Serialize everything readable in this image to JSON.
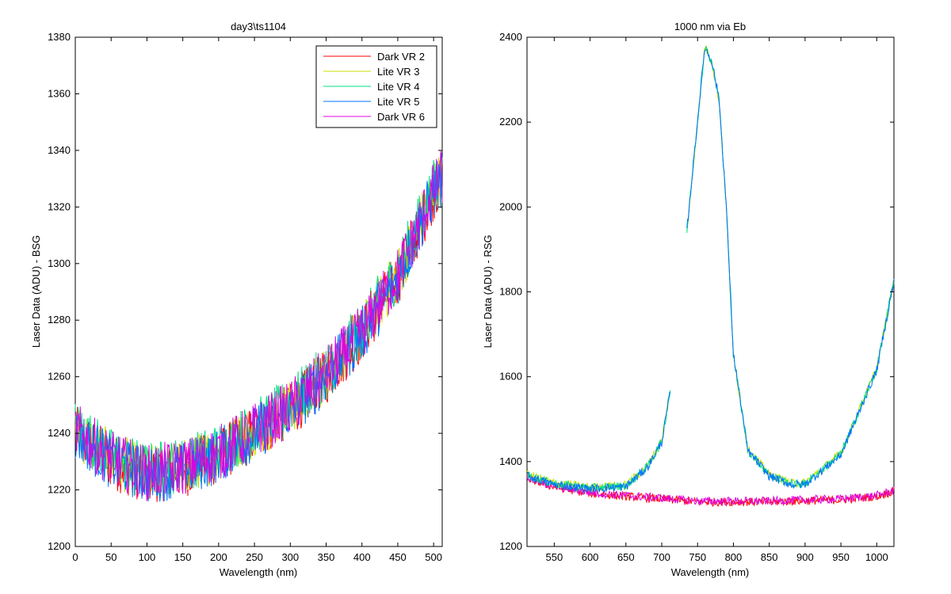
{
  "chart_data": [
    {
      "type": "line",
      "title": "day3\\ts1104",
      "xlabel": "Wavelength (nm)",
      "ylabel": "Laser Data (ADU) - BSG",
      "xlim": [
        0,
        512
      ],
      "ylim": [
        1200,
        1380
      ],
      "xticks": [
        "0",
        "50",
        "100",
        "150",
        "200",
        "250",
        "300",
        "350",
        "400",
        "450",
        "500"
      ],
      "yticks": [
        "1200",
        "1220",
        "1240",
        "1260",
        "1280",
        "1300",
        "1320",
        "1340",
        "1360",
        "1380"
      ],
      "grid": false,
      "legend": "top-right",
      "noise_amplitude": 10,
      "series": [
        {
          "name": "Dark VR 2",
          "color": "#ff0000",
          "x": [
            0,
            50,
            100,
            150,
            200,
            250,
            300,
            350,
            400,
            450,
            500,
            512
          ],
          "y": [
            1240,
            1230,
            1225,
            1227,
            1232,
            1240,
            1248,
            1260,
            1275,
            1295,
            1325,
            1330
          ]
        },
        {
          "name": "Lite VR 3",
          "color": "#c8e000",
          "x": [
            0,
            50,
            100,
            150,
            200,
            250,
            300,
            350,
            400,
            450,
            500,
            512
          ],
          "y": [
            1241,
            1231,
            1226,
            1228,
            1233,
            1241,
            1249,
            1261,
            1276,
            1296,
            1326,
            1331
          ]
        },
        {
          "name": "Lite VR 4",
          "color": "#00e080",
          "x": [
            0,
            50,
            100,
            150,
            200,
            250,
            300,
            350,
            400,
            450,
            500,
            512
          ],
          "y": [
            1242,
            1232,
            1227,
            1229,
            1234,
            1242,
            1250,
            1262,
            1277,
            1297,
            1327,
            1332
          ]
        },
        {
          "name": "Lite VR 5",
          "color": "#0070ff",
          "x": [
            0,
            50,
            100,
            150,
            200,
            250,
            300,
            350,
            400,
            450,
            500,
            512
          ],
          "y": [
            1240,
            1230,
            1225,
            1227,
            1232,
            1240,
            1248,
            1260,
            1275,
            1295,
            1325,
            1330
          ]
        },
        {
          "name": "Dark VR 6",
          "color": "#e000e0",
          "x": [
            0,
            50,
            100,
            150,
            200,
            250,
            300,
            350,
            400,
            450,
            500,
            512
          ],
          "y": [
            1241,
            1231,
            1226,
            1228,
            1233,
            1241,
            1249,
            1261,
            1276,
            1296,
            1326,
            1331
          ]
        }
      ]
    },
    {
      "type": "line",
      "title": "1000 nm via Eb",
      "xlabel": "Wavelength (nm)",
      "ylabel": "Laser Data (ADU) - RSG",
      "xlim": [
        512,
        1024
      ],
      "ylim": [
        1200,
        2400
      ],
      "xticks": [
        "550",
        "600",
        "650",
        "700",
        "750",
        "800",
        "850",
        "900",
        "950",
        "1000"
      ],
      "yticks": [
        "1200",
        "1400",
        "1600",
        "1800",
        "2000",
        "2200",
        "2400"
      ],
      "grid": false,
      "legend": "none",
      "noise_amplitude": 10,
      "series": [
        {
          "color": "#ff0000",
          "x": [
            512,
            550,
            600,
            650,
            700,
            750,
            800,
            850,
            900,
            950,
            1000,
            1024
          ],
          "y": [
            1360,
            1340,
            1325,
            1318,
            1312,
            1305,
            1305,
            1305,
            1308,
            1310,
            1318,
            1330
          ]
        },
        {
          "color": "#e000e0",
          "x": [
            512,
            550,
            600,
            650,
            700,
            750,
            800,
            850,
            900,
            950,
            1000,
            1024
          ],
          "y": [
            1362,
            1342,
            1327,
            1320,
            1314,
            1307,
            1307,
            1307,
            1310,
            1312,
            1320,
            1332
          ]
        },
        {
          "color": "#c8e000",
          "x": [
            512,
            550,
            600,
            650,
            680,
            700,
            712,
            735,
            750,
            760,
            770,
            780,
            790,
            800,
            820,
            850,
            880,
            900,
            950,
            1000,
            1024
          ],
          "y": [
            1370,
            1350,
            1340,
            1345,
            1390,
            1450,
            1570,
            1940,
            2200,
            2380,
            2340,
            2250,
            2000,
            1650,
            1430,
            1370,
            1350,
            1350,
            1420,
            1620,
            1830
          ],
          "gaps": [
            [
              713,
              734
            ]
          ]
        },
        {
          "color": "#00e080",
          "x": [
            512,
            550,
            600,
            650,
            680,
            700,
            712,
            735,
            750,
            760,
            770,
            780,
            790,
            800,
            820,
            850,
            880,
            900,
            950,
            1000,
            1024
          ],
          "y": [
            1368,
            1348,
            1338,
            1343,
            1388,
            1448,
            1568,
            1942,
            2202,
            2378,
            2342,
            2252,
            2002,
            1652,
            1428,
            1368,
            1348,
            1348,
            1418,
            1618,
            1828
          ],
          "gaps": [
            [
              713,
              734
            ]
          ]
        },
        {
          "color": "#0070ff",
          "x": [
            512,
            550,
            600,
            650,
            680,
            700,
            712,
            735,
            750,
            760,
            770,
            780,
            790,
            800,
            820,
            850,
            880,
            900,
            950,
            1000,
            1024
          ],
          "y": [
            1366,
            1346,
            1336,
            1341,
            1386,
            1446,
            1566,
            1944,
            2204,
            2376,
            2344,
            2254,
            2004,
            1654,
            1426,
            1366,
            1346,
            1346,
            1416,
            1616,
            1826
          ],
          "gaps": [
            [
              713,
              734
            ]
          ]
        }
      ]
    }
  ]
}
